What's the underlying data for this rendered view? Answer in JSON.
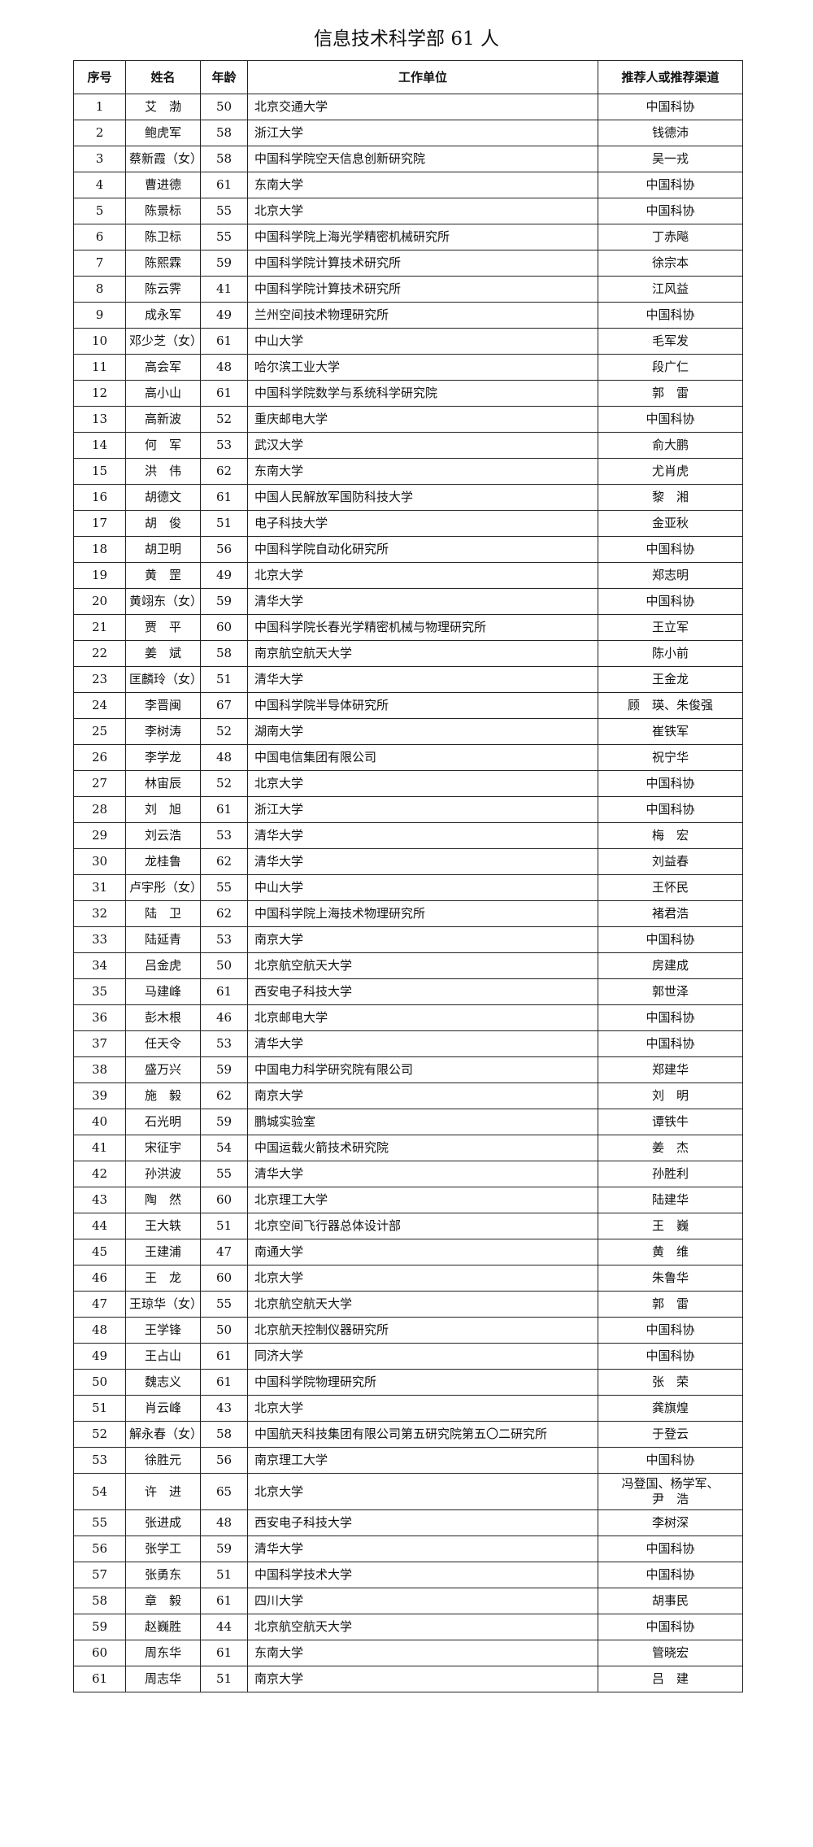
{
  "header": {
    "title": "信息技术科学部 61 人"
  },
  "table": {
    "columns": [
      "序号",
      "姓名",
      "年龄",
      "工作单位",
      "推荐人或推荐渠道"
    ],
    "rows": [
      [
        1,
        "艾　渤",
        50,
        "北京交通大学",
        "中国科协"
      ],
      [
        2,
        "鲍虎军",
        58,
        "浙江大学",
        "钱德沛"
      ],
      [
        3,
        "蔡新霞（女）",
        58,
        "中国科学院空天信息创新研究院",
        "吴一戎"
      ],
      [
        4,
        "曹进德",
        61,
        "东南大学",
        "中国科协"
      ],
      [
        5,
        "陈景标",
        55,
        "北京大学",
        "中国科协"
      ],
      [
        6,
        "陈卫标",
        55,
        "中国科学院上海光学精密机械研究所",
        "丁赤飚"
      ],
      [
        7,
        "陈熙霖",
        59,
        "中国科学院计算技术研究所",
        "徐宗本"
      ],
      [
        8,
        "陈云霁",
        41,
        "中国科学院计算技术研究所",
        "江风益"
      ],
      [
        9,
        "成永军",
        49,
        "兰州空间技术物理研究所",
        "中国科协"
      ],
      [
        10,
        "邓少芝（女）",
        61,
        "中山大学",
        "毛军发"
      ],
      [
        11,
        "高会军",
        48,
        "哈尔滨工业大学",
        "段广仁"
      ],
      [
        12,
        "高小山",
        61,
        "中国科学院数学与系统科学研究院",
        "郭　雷"
      ],
      [
        13,
        "高新波",
        52,
        "重庆邮电大学",
        "中国科协"
      ],
      [
        14,
        "何　军",
        53,
        "武汉大学",
        "俞大鹏"
      ],
      [
        15,
        "洪　伟",
        62,
        "东南大学",
        "尤肖虎"
      ],
      [
        16,
        "胡德文",
        61,
        "中国人民解放军国防科技大学",
        "黎　湘"
      ],
      [
        17,
        "胡　俊",
        51,
        "电子科技大学",
        "金亚秋"
      ],
      [
        18,
        "胡卫明",
        56,
        "中国科学院自动化研究所",
        "中国科协"
      ],
      [
        19,
        "黄　罡",
        49,
        "北京大学",
        "郑志明"
      ],
      [
        20,
        "黄翊东（女）",
        59,
        "清华大学",
        "中国科协"
      ],
      [
        21,
        "贾　平",
        60,
        "中国科学院长春光学精密机械与物理研究所",
        "王立军"
      ],
      [
        22,
        "姜　斌",
        58,
        "南京航空航天大学",
        "陈小前"
      ],
      [
        23,
        "匡麟玲（女）",
        51,
        "清华大学",
        "王金龙"
      ],
      [
        24,
        "李晋闽",
        67,
        "中国科学院半导体研究所",
        "顾　瑛、朱俊强"
      ],
      [
        25,
        "李树涛",
        52,
        "湖南大学",
        "崔铁军"
      ],
      [
        26,
        "李学龙",
        48,
        "中国电信集团有限公司",
        "祝宁华"
      ],
      [
        27,
        "林宙辰",
        52,
        "北京大学",
        "中国科协"
      ],
      [
        28,
        "刘　旭",
        61,
        "浙江大学",
        "中国科协"
      ],
      [
        29,
        "刘云浩",
        53,
        "清华大学",
        "梅　宏"
      ],
      [
        30,
        "龙桂鲁",
        62,
        "清华大学",
        "刘益春"
      ],
      [
        31,
        "卢宇彤（女）",
        55,
        "中山大学",
        "王怀民"
      ],
      [
        32,
        "陆　卫",
        62,
        "中国科学院上海技术物理研究所",
        "褚君浩"
      ],
      [
        33,
        "陆延青",
        53,
        "南京大学",
        "中国科协"
      ],
      [
        34,
        "吕金虎",
        50,
        "北京航空航天大学",
        "房建成"
      ],
      [
        35,
        "马建峰",
        61,
        "西安电子科技大学",
        "郭世泽"
      ],
      [
        36,
        "彭木根",
        46,
        "北京邮电大学",
        "中国科协"
      ],
      [
        37,
        "任天令",
        53,
        "清华大学",
        "中国科协"
      ],
      [
        38,
        "盛万兴",
        59,
        "中国电力科学研究院有限公司",
        "郑建华"
      ],
      [
        39,
        "施　毅",
        62,
        "南京大学",
        "刘　明"
      ],
      [
        40,
        "石光明",
        59,
        "鹏城实验室",
        "谭铁牛"
      ],
      [
        41,
        "宋征宇",
        54,
        "中国运载火箭技术研究院",
        "姜　杰"
      ],
      [
        42,
        "孙洪波",
        55,
        "清华大学",
        "孙胜利"
      ],
      [
        43,
        "陶　然",
        60,
        "北京理工大学",
        "陆建华"
      ],
      [
        44,
        "王大轶",
        51,
        "北京空间飞行器总体设计部",
        "王　巍"
      ],
      [
        45,
        "王建浦",
        47,
        "南通大学",
        "黄　维"
      ],
      [
        46,
        "王　龙",
        60,
        "北京大学",
        "朱鲁华"
      ],
      [
        47,
        "王琼华（女）",
        55,
        "北京航空航天大学",
        "郭　雷"
      ],
      [
        48,
        "王学锋",
        50,
        "北京航天控制仪器研究所",
        "中国科协"
      ],
      [
        49,
        "王占山",
        61,
        "同济大学",
        "中国科协"
      ],
      [
        50,
        "魏志义",
        61,
        "中国科学院物理研究所",
        "张　荣"
      ],
      [
        51,
        "肖云峰",
        43,
        "北京大学",
        "龚旗煌"
      ],
      [
        52,
        "解永春（女）",
        58,
        "中国航天科技集团有限公司第五研究院第五〇二研究所",
        "于登云"
      ],
      [
        53,
        "徐胜元",
        56,
        "南京理工大学",
        "中国科协"
      ],
      [
        54,
        "许　进",
        65,
        "北京大学",
        "冯登国、杨学军、尹　浩"
      ],
      [
        55,
        "张进成",
        48,
        "西安电子科技大学",
        "李树深"
      ],
      [
        56,
        "张学工",
        59,
        "清华大学",
        "中国科协"
      ],
      [
        57,
        "张勇东",
        51,
        "中国科学技术大学",
        "中国科协"
      ],
      [
        58,
        "章　毅",
        61,
        "四川大学",
        "胡事民"
      ],
      [
        59,
        "赵巍胜",
        44,
        "北京航空航天大学",
        "中国科协"
      ],
      [
        60,
        "周东华",
        61,
        "东南大学",
        "管晓宏"
      ],
      [
        61,
        "周志华",
        51,
        "南京大学",
        "吕　建"
      ]
    ]
  }
}
